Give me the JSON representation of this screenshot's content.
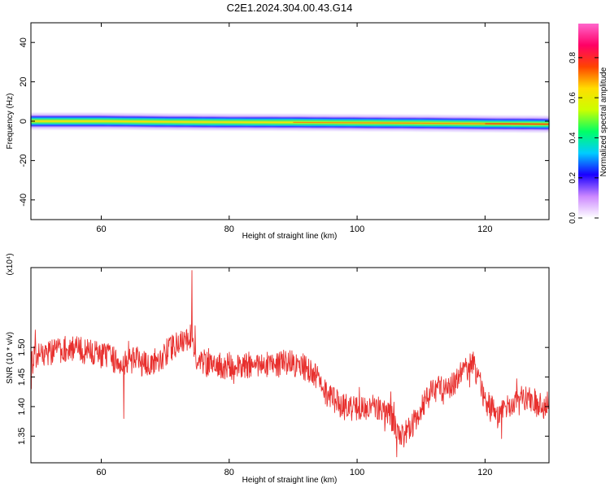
{
  "title": "C2E1.2024.304.00.43.G14",
  "chart_data": [
    {
      "type": "heatmap",
      "xlabel": "Height of straight line (km)",
      "ylabel": "Frequency (Hz)",
      "xlim": [
        49,
        130
      ],
      "ylim": [
        -50,
        50
      ],
      "xticks": [
        60,
        80,
        100,
        120
      ],
      "yticks": [
        40,
        20,
        0,
        -20,
        -40
      ],
      "ytick_labels": [
        "40",
        "20",
        "0",
        "-20",
        "-40"
      ],
      "ridge": {
        "x": [
          49,
          60,
          70,
          80,
          90,
          100,
          110,
          120,
          130
        ],
        "center_hz": [
          0.0,
          0.0,
          -0.3,
          -0.5,
          -0.6,
          -0.8,
          -1.0,
          -1.3,
          -1.5
        ],
        "peak_amplitude": [
          0.55,
          0.6,
          0.65,
          0.7,
          0.7,
          0.75,
          0.8,
          0.88,
          0.95
        ]
      },
      "colorbar": {
        "label": "Normalized spectral amplitude",
        "ticks": [
          0.0,
          0.2,
          0.4,
          0.6,
          0.8
        ],
        "range": [
          0.0,
          0.97
        ],
        "colors": [
          "#ffffff",
          "#cc88ff",
          "#1a00ff",
          "#00ccff",
          "#00ff66",
          "#ccff00",
          "#ffdd00",
          "#ff4400",
          "#ff0066",
          "#ff66cc"
        ]
      },
      "grid": false
    },
    {
      "type": "line",
      "xlabel": "Height of straight line (km)",
      "ylabel": "SNR (10 * v/v)",
      "y_multiplier": "(x10⁴)",
      "xlim": [
        49,
        130
      ],
      "ylim": [
        1.305,
        1.635
      ],
      "xticks": [
        60,
        80,
        100,
        120
      ],
      "yticks": [
        1.35,
        1.4,
        1.45,
        1.5
      ],
      "ytick_labels": [
        "1.35",
        "1.40",
        "1.45",
        "1.50"
      ],
      "color": "#e8302e",
      "series": [
        {
          "x": [
            49,
            51,
            53,
            55,
            57,
            59,
            61,
            63,
            65,
            67,
            69,
            71,
            73,
            74,
            75,
            77,
            79,
            81,
            83,
            85,
            87,
            89,
            91,
            93,
            95,
            97,
            99,
            101,
            103,
            105,
            106,
            107,
            108,
            110,
            112,
            114,
            116,
            118,
            119,
            120,
            122,
            124,
            126,
            128,
            129,
            130
          ],
          "y": [
            1.48,
            1.49,
            1.495,
            1.5,
            1.495,
            1.49,
            1.485,
            1.475,
            1.48,
            1.47,
            1.48,
            1.5,
            1.51,
            1.52,
            1.48,
            1.47,
            1.47,
            1.465,
            1.47,
            1.475,
            1.47,
            1.475,
            1.47,
            1.46,
            1.425,
            1.405,
            1.395,
            1.395,
            1.4,
            1.39,
            1.365,
            1.35,
            1.36,
            1.395,
            1.43,
            1.43,
            1.45,
            1.475,
            1.45,
            1.41,
            1.385,
            1.4,
            1.415,
            1.41,
            1.395,
            1.405
          ]
        }
      ],
      "outliers": [
        {
          "x": 63.5,
          "y": 1.38
        },
        {
          "x": 106.2,
          "y": 1.315
        },
        {
          "x": 74.2,
          "y": 1.63
        }
      ],
      "grid": false
    }
  ]
}
